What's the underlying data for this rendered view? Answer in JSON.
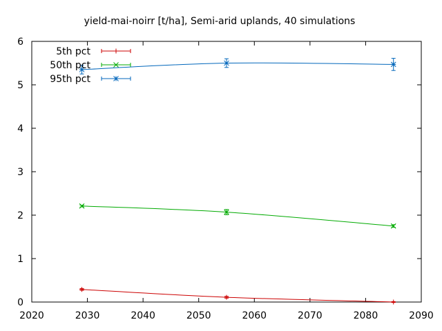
{
  "chart_data": {
    "type": "line",
    "title": "yield-mai-noirr [t/ha], Semi-arid uplands, 40 simulations",
    "xlabel": "",
    "ylabel": "",
    "xlim": [
      2020,
      2090
    ],
    "ylim": [
      0,
      6
    ],
    "xticks": [
      2020,
      2030,
      2040,
      2050,
      2060,
      2070,
      2080,
      2090
    ],
    "yticks": [
      0,
      1,
      2,
      3,
      4,
      5,
      6
    ],
    "grid": false,
    "legend_position": "top-left",
    "x": [
      2029,
      2055,
      2085
    ],
    "series": [
      {
        "name": "5th pct",
        "color": "#cc0000",
        "marker": "plus",
        "values": [
          0.29,
          0.11,
          0.0
        ],
        "err": [
          0.02,
          0.02,
          0.01
        ]
      },
      {
        "name": "50th pct",
        "color": "#00aa00",
        "marker": "cross",
        "values": [
          2.21,
          2.07,
          1.75
        ],
        "err": [
          0.02,
          0.06,
          0.03
        ]
      },
      {
        "name": "95th pct",
        "color": "#0066bb",
        "marker": "star",
        "values": [
          5.35,
          5.5,
          5.47
        ],
        "err": [
          0.1,
          0.1,
          0.14
        ]
      }
    ]
  }
}
